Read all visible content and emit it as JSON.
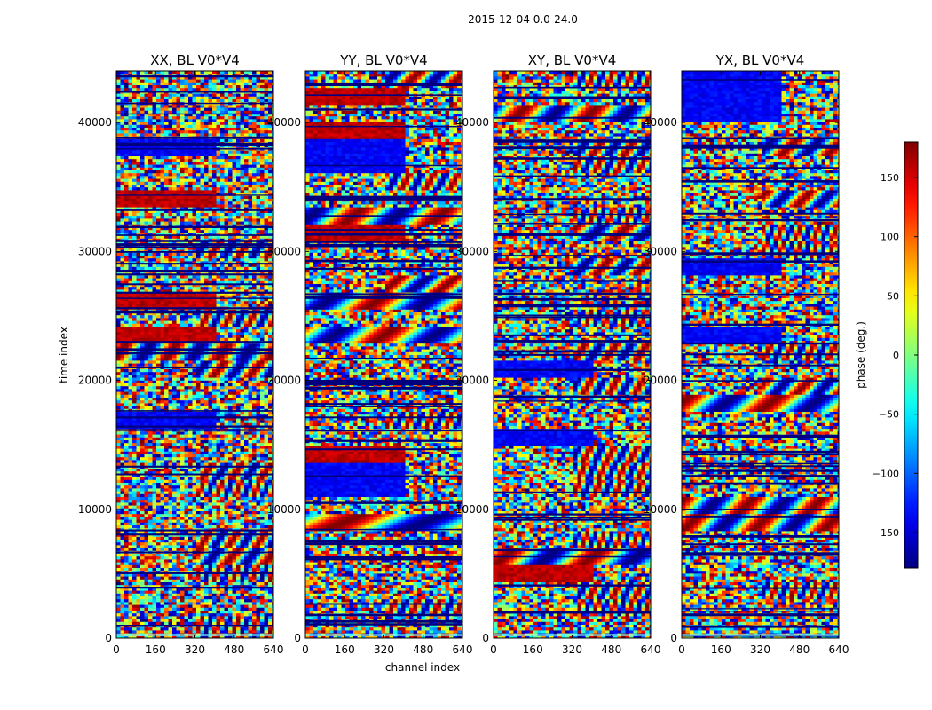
{
  "figure": {
    "suptitle": "2015-12-04 0.0-24.0"
  },
  "chart_data": {
    "type": "heatmap",
    "xlabel": "channel index",
    "ylabel": "time index",
    "xlim": [
      0,
      640
    ],
    "ylim": [
      0,
      44000
    ],
    "xticks": [
      0,
      160,
      320,
      480,
      640
    ],
    "yticks": [
      0,
      10000,
      20000,
      30000,
      40000
    ],
    "panels": [
      {
        "title": "XX, BL V0*V4"
      },
      {
        "title": "YY, BL V0*V4"
      },
      {
        "title": "XY, BL V0*V4"
      },
      {
        "title": "YX, BL V0*V4"
      }
    ],
    "colorbar": {
      "label": "phase (deg.)",
      "range": [
        -180,
        180
      ],
      "ticks": [
        -150,
        -100,
        -50,
        0,
        50,
        100,
        150
      ],
      "tick_labels": [
        "−150",
        "−100",
        "−50",
        "0",
        "50",
        "100",
        "150"
      ],
      "colormap": "jet"
    }
  }
}
